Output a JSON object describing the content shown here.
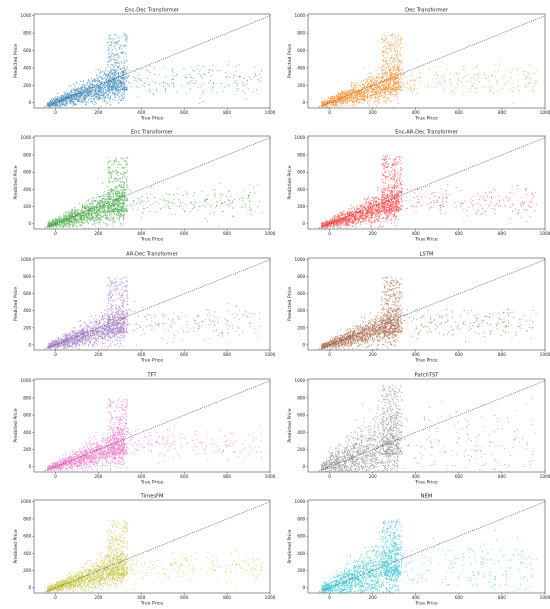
{
  "chart_data": [
    {
      "type": "scatter",
      "title": "Enc-Dec Transformer",
      "xlabel": "True Price",
      "ylabel": "Predicted Price",
      "color": "#1f77b4",
      "xlim": [
        -100,
        1000
      ],
      "ylim": [
        -60,
        1020
      ],
      "xticks": [
        0,
        200,
        400,
        600,
        800,
        1000
      ],
      "yticks": [
        0,
        200,
        400,
        600,
        800,
        1000
      ],
      "reference_line": {
        "from": [
          -50,
          -50
        ],
        "to": [
          1000,
          1000
        ]
      }
    },
    {
      "type": "scatter",
      "title": "Dec Transformer",
      "xlabel": "True Price",
      "ylabel": "Predicted Price",
      "color": "#ff7f0e",
      "xlim": [
        -100,
        1000
      ],
      "ylim": [
        -60,
        1020
      ],
      "xticks": [
        0,
        200,
        400,
        600,
        800,
        1000
      ],
      "yticks": [
        0,
        200,
        400,
        600,
        800,
        1000
      ],
      "reference_line": {
        "from": [
          -50,
          -50
        ],
        "to": [
          1000,
          1000
        ]
      }
    },
    {
      "type": "scatter",
      "title": "Enc Transformer",
      "xlabel": "True Price",
      "ylabel": "Predicted Price",
      "color": "#2ca02c",
      "xlim": [
        -100,
        1000
      ],
      "ylim": [
        -60,
        1020
      ],
      "xticks": [
        0,
        200,
        400,
        600,
        800,
        1000
      ],
      "yticks": [
        0,
        200,
        400,
        600,
        800,
        1000
      ],
      "reference_line": {
        "from": [
          -50,
          -50
        ],
        "to": [
          1000,
          1000
        ]
      }
    },
    {
      "type": "scatter",
      "title": "Enc-AR-Dec Transformer",
      "xlabel": "True Price",
      "ylabel": "Predicted Price",
      "color": "#ff2a2a",
      "xlim": [
        -100,
        1000
      ],
      "ylim": [
        -60,
        1020
      ],
      "xticks": [
        0,
        200,
        400,
        600,
        800,
        1000
      ],
      "yticks": [
        0,
        200,
        400,
        600,
        800,
        1000
      ],
      "reference_line": {
        "from": [
          -50,
          -50
        ],
        "to": [
          1000,
          1000
        ]
      }
    },
    {
      "type": "scatter",
      "title": "AR-Dec Transformer",
      "xlabel": "True Price",
      "ylabel": "Predicted Price",
      "color": "#9467bd",
      "xlim": [
        -100,
        1000
      ],
      "ylim": [
        -60,
        1020
      ],
      "xticks": [
        0,
        200,
        400,
        600,
        800,
        1000
      ],
      "yticks": [
        0,
        200,
        400,
        600,
        800,
        1000
      ],
      "reference_line": {
        "from": [
          -50,
          -50
        ],
        "to": [
          1000,
          1000
        ]
      }
    },
    {
      "type": "scatter",
      "title": "LSTM",
      "xlabel": "True Price",
      "ylabel": "Predicted Price",
      "color": "#a0522d",
      "xlim": [
        -100,
        1000
      ],
      "ylim": [
        -60,
        1020
      ],
      "xticks": [
        0,
        200,
        400,
        600,
        800,
        1000
      ],
      "yticks": [
        0,
        200,
        400,
        600,
        800,
        1000
      ],
      "reference_line": {
        "from": [
          -50,
          -50
        ],
        "to": [
          1000,
          1000
        ]
      }
    },
    {
      "type": "scatter",
      "title": "TFT",
      "xlabel": "True Price",
      "ylabel": "Predicted Price",
      "color": "#f062c0",
      "xlim": [
        -100,
        1000
      ],
      "ylim": [
        -60,
        1020
      ],
      "xticks": [
        0,
        200,
        400,
        600,
        800,
        1000
      ],
      "yticks": [
        0,
        200,
        400,
        600,
        800,
        1000
      ],
      "reference_line": {
        "from": [
          -50,
          -50
        ],
        "to": [
          1000,
          1000
        ]
      }
    },
    {
      "type": "scatter",
      "title": "PatchTST",
      "xlabel": "True Price",
      "ylabel": "Predicted Price",
      "color": "#7f7f7f",
      "xlim": [
        -100,
        1000
      ],
      "ylim": [
        -60,
        1020
      ],
      "xticks": [
        0,
        200,
        400,
        600,
        800,
        1000
      ],
      "yticks": [
        0,
        200,
        400,
        600,
        800,
        1000
      ],
      "reference_line": {
        "from": [
          -50,
          -50
        ],
        "to": [
          1000,
          1000
        ]
      }
    },
    {
      "type": "scatter",
      "title": "TimesFM",
      "xlabel": "True Price",
      "ylabel": "Predicted Price",
      "color": "#bcbd22",
      "xlim": [
        -100,
        1000
      ],
      "ylim": [
        -60,
        1020
      ],
      "xticks": [
        0,
        200,
        400,
        600,
        800,
        1000
      ],
      "yticks": [
        0,
        200,
        400,
        600,
        800,
        1000
      ],
      "reference_line": {
        "from": [
          -50,
          -50
        ],
        "to": [
          1000,
          1000
        ]
      }
    },
    {
      "type": "scatter",
      "title": "NEM",
      "xlabel": "True Price",
      "ylabel": "Predicted Price",
      "color": "#17becf",
      "xlim": [
        -100,
        1000
      ],
      "ylim": [
        -60,
        1020
      ],
      "xticks": [
        0,
        200,
        400,
        600,
        800,
        1000
      ],
      "yticks": [
        0,
        200,
        400,
        600,
        800,
        1000
      ],
      "reference_line": {
        "from": [
          -50,
          -50
        ],
        "to": [
          1000,
          1000
        ]
      }
    }
  ]
}
